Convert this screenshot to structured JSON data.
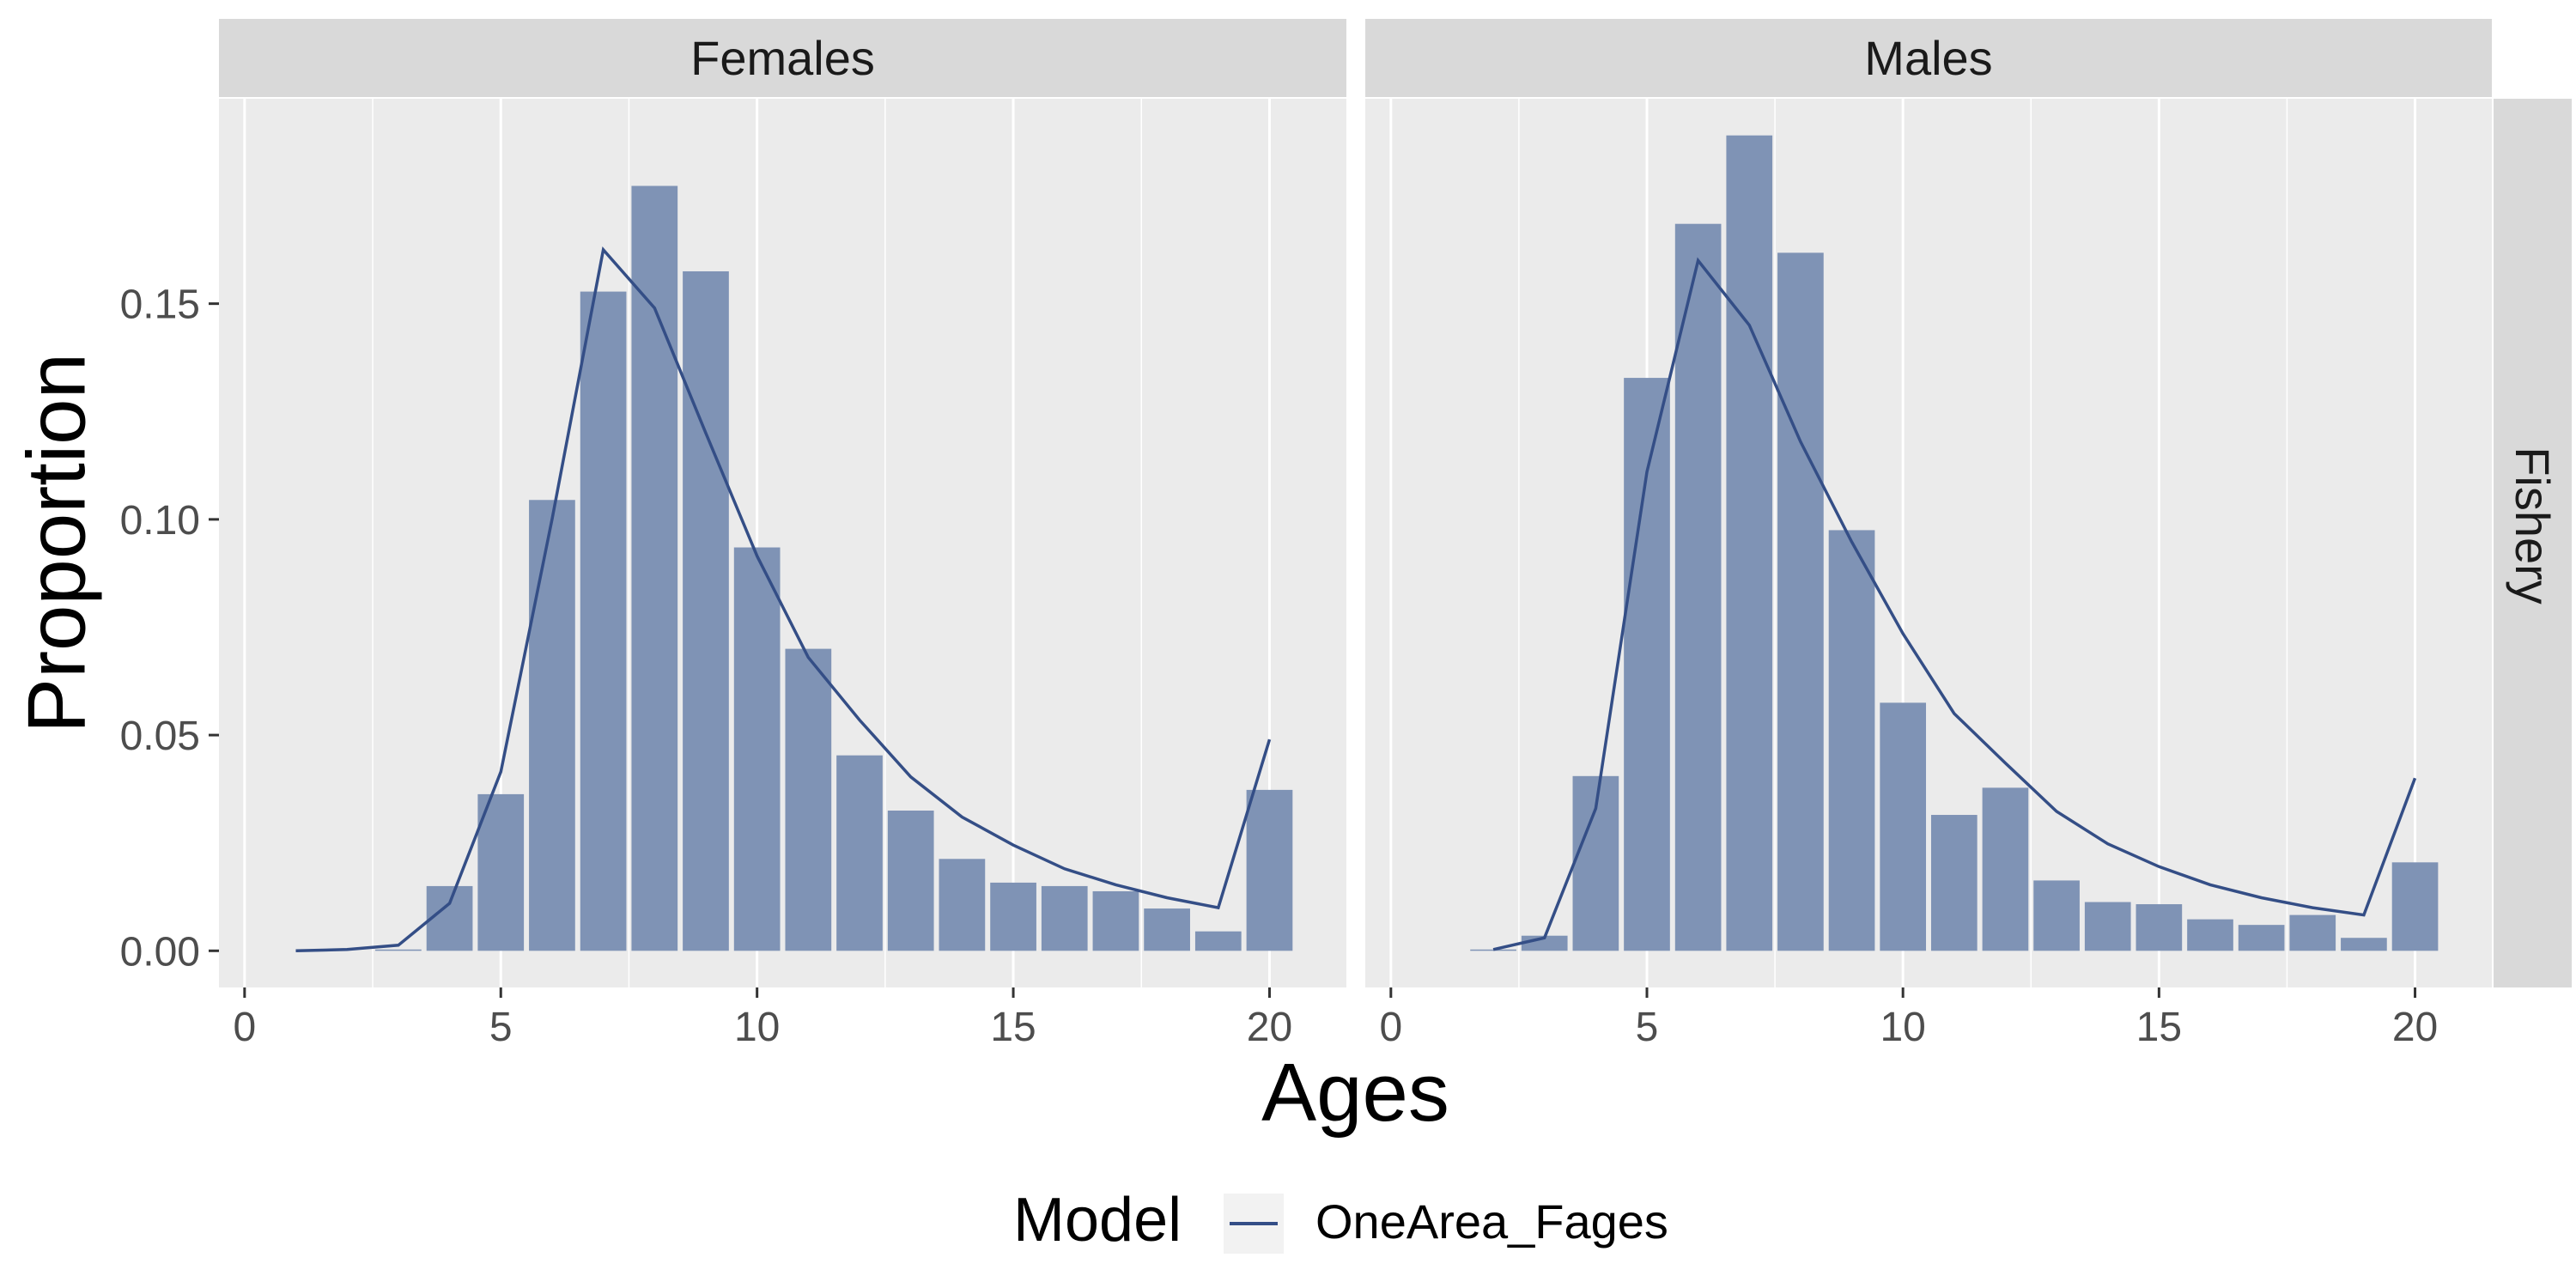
{
  "chart_data": {
    "type": "bar",
    "xlabel": "Ages",
    "ylabel": "Proportion",
    "row_strip": "Fishery",
    "xlim": [
      -0.5,
      21.5
    ],
    "ylim": [
      -0.0085,
      0.1975
    ],
    "x_ticks": [
      0,
      5,
      10,
      15,
      20
    ],
    "x_tick_labels": [
      "0",
      "5",
      "10",
      "15",
      "20"
    ],
    "y_ticks": [
      0.0,
      0.05,
      0.1,
      0.15
    ],
    "y_tick_labels": [
      "0.00",
      "0.05",
      "0.10",
      "0.15"
    ],
    "grid": true,
    "legend": {
      "title": "Model",
      "position": "bottom",
      "entries": [
        {
          "label": "OneArea_Fages",
          "color": "#344e86"
        }
      ]
    },
    "colors": {
      "bar": "#7f93b5",
      "line": "#344e86",
      "panel_bg": "#ebebeb",
      "strip_bg": "#d9d9d9",
      "grid": "#ffffff"
    },
    "panels": [
      {
        "strip": "Females",
        "bars": [
          {
            "age": 3,
            "obs": 0.0003
          },
          {
            "age": 4,
            "obs": 0.015
          },
          {
            "age": 5,
            "obs": 0.0363
          },
          {
            "age": 6,
            "obs": 0.1045
          },
          {
            "age": 7,
            "obs": 0.1528
          },
          {
            "age": 8,
            "obs": 0.1773
          },
          {
            "age": 9,
            "obs": 0.1575
          },
          {
            "age": 10,
            "obs": 0.0935
          },
          {
            "age": 11,
            "obs": 0.07
          },
          {
            "age": 12,
            "obs": 0.0453
          },
          {
            "age": 13,
            "obs": 0.0325
          },
          {
            "age": 14,
            "obs": 0.0213
          },
          {
            "age": 15,
            "obs": 0.0158
          },
          {
            "age": 16,
            "obs": 0.015
          },
          {
            "age": 17,
            "obs": 0.0138
          },
          {
            "age": 18,
            "obs": 0.0098
          },
          {
            "age": 19,
            "obs": 0.0045
          },
          {
            "age": 20,
            "obs": 0.0373
          }
        ],
        "line": [
          {
            "age": 1,
            "exp": 0.0
          },
          {
            "age": 2,
            "exp": 0.0003
          },
          {
            "age": 3,
            "exp": 0.0013
          },
          {
            "age": 4,
            "exp": 0.011
          },
          {
            "age": 5,
            "exp": 0.0415
          },
          {
            "age": 6,
            "exp": 0.1
          },
          {
            "age": 7,
            "exp": 0.1625
          },
          {
            "age": 8,
            "exp": 0.149
          },
          {
            "age": 9,
            "exp": 0.12
          },
          {
            "age": 10,
            "exp": 0.0915
          },
          {
            "age": 11,
            "exp": 0.068
          },
          {
            "age": 12,
            "exp": 0.0535
          },
          {
            "age": 13,
            "exp": 0.0403
          },
          {
            "age": 14,
            "exp": 0.031
          },
          {
            "age": 15,
            "exp": 0.0245
          },
          {
            "age": 16,
            "exp": 0.019
          },
          {
            "age": 17,
            "exp": 0.0153
          },
          {
            "age": 18,
            "exp": 0.0123
          },
          {
            "age": 19,
            "exp": 0.01
          },
          {
            "age": 20,
            "exp": 0.049
          }
        ]
      },
      {
        "strip": "Males",
        "bars": [
          {
            "age": 2,
            "obs": 0.0003
          },
          {
            "age": 3,
            "obs": 0.0035
          },
          {
            "age": 4,
            "obs": 0.0405
          },
          {
            "age": 5,
            "obs": 0.1328
          },
          {
            "age": 6,
            "obs": 0.1685
          },
          {
            "age": 7,
            "obs": 0.189
          },
          {
            "age": 8,
            "obs": 0.1618
          },
          {
            "age": 9,
            "obs": 0.0975
          },
          {
            "age": 10,
            "obs": 0.0575
          },
          {
            "age": 11,
            "obs": 0.0315
          },
          {
            "age": 12,
            "obs": 0.0378
          },
          {
            "age": 13,
            "obs": 0.0163
          },
          {
            "age": 14,
            "obs": 0.0113
          },
          {
            "age": 15,
            "obs": 0.0108
          },
          {
            "age": 16,
            "obs": 0.0073
          },
          {
            "age": 17,
            "obs": 0.006
          },
          {
            "age": 18,
            "obs": 0.0083
          },
          {
            "age": 19,
            "obs": 0.003
          },
          {
            "age": 20,
            "obs": 0.0205
          }
        ],
        "line": [
          {
            "age": 2,
            "exp": 0.0003
          },
          {
            "age": 3,
            "exp": 0.003
          },
          {
            "age": 4,
            "exp": 0.033
          },
          {
            "age": 5,
            "exp": 0.111
          },
          {
            "age": 6,
            "exp": 0.16
          },
          {
            "age": 7,
            "exp": 0.145
          },
          {
            "age": 8,
            "exp": 0.118
          },
          {
            "age": 9,
            "exp": 0.0948
          },
          {
            "age": 10,
            "exp": 0.0735
          },
          {
            "age": 11,
            "exp": 0.055
          },
          {
            "age": 12,
            "exp": 0.0435
          },
          {
            "age": 13,
            "exp": 0.0323
          },
          {
            "age": 14,
            "exp": 0.0248
          },
          {
            "age": 15,
            "exp": 0.0195
          },
          {
            "age": 16,
            "exp": 0.0153
          },
          {
            "age": 17,
            "exp": 0.0123
          },
          {
            "age": 18,
            "exp": 0.01
          },
          {
            "age": 19,
            "exp": 0.0083
          },
          {
            "age": 20,
            "exp": 0.04
          }
        ]
      }
    ]
  }
}
